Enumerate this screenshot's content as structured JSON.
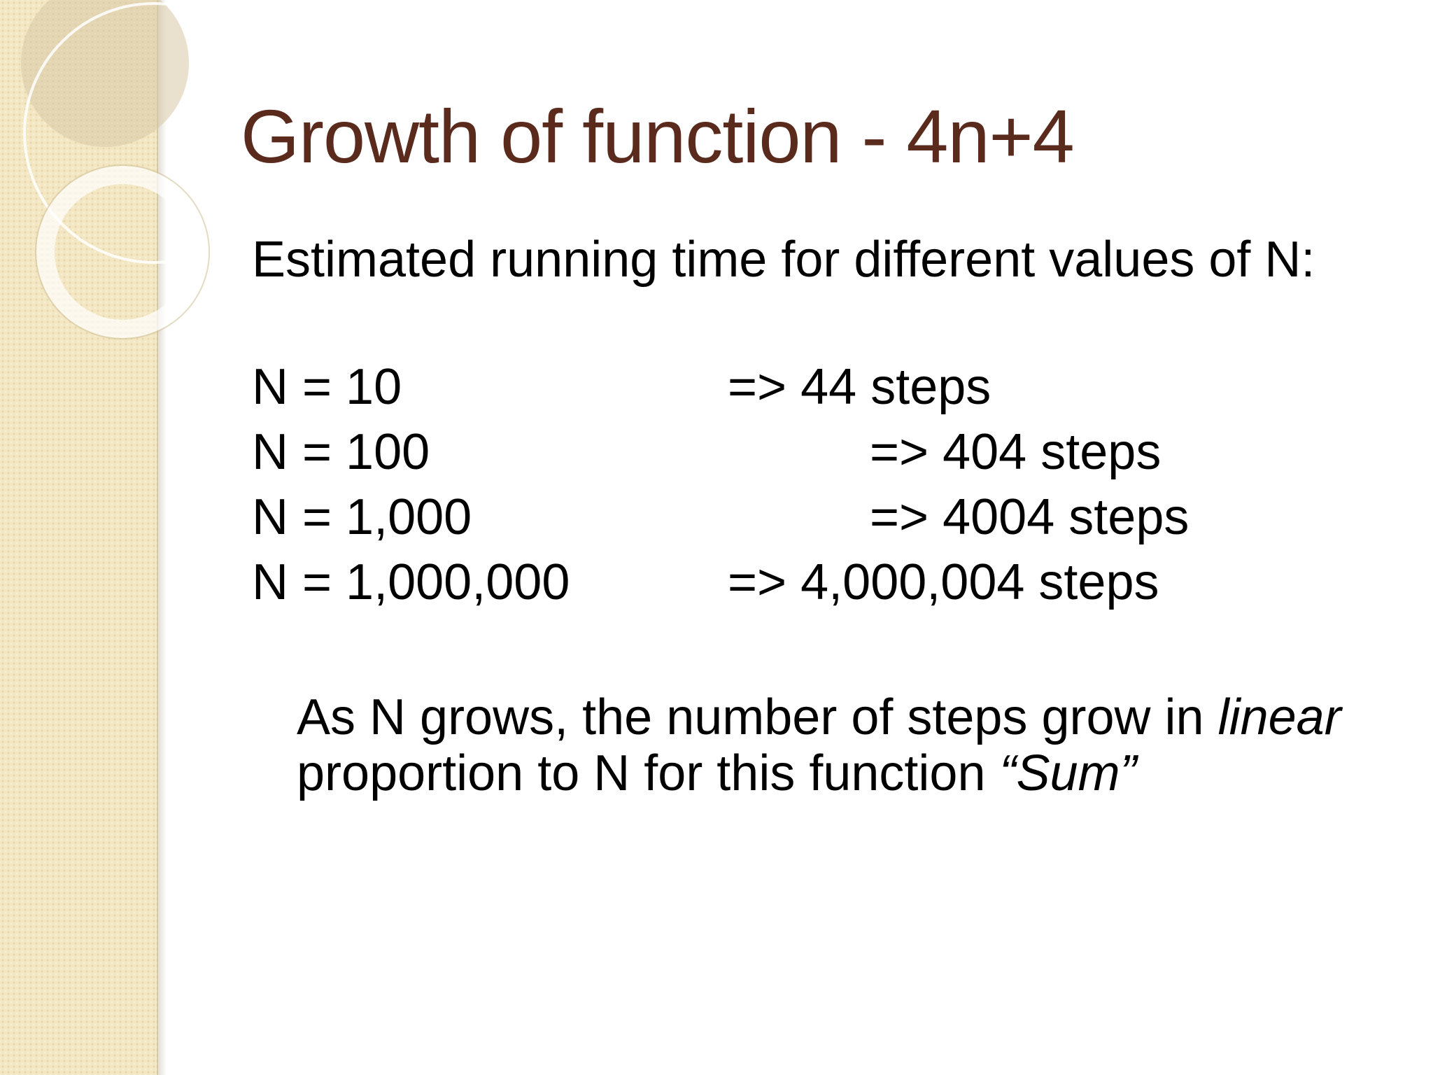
{
  "slide": {
    "title": "Growth of function - 4n+4",
    "intro": "Estimated running time for different values of N:",
    "rows": [
      {
        "n": "N = 10",
        "result": "=> 44 steps"
      },
      {
        "n": "N = 100",
        "result": "=> 404 steps"
      },
      {
        "n": "N = 1,000",
        "result": "=> 4004 steps"
      },
      {
        "n": "N = 1,000,000",
        "result": "=> 4,000,004 steps"
      }
    ],
    "summary": {
      "line1_text": "As N grows, the number of steps grow in ",
      "line1_italic": "linear",
      "line2_text": "proportion to N for this function ",
      "line2_italic": "“Sum”"
    }
  },
  "colors": {
    "title": "#5a2a1c",
    "side_band": "#f3e6c2",
    "body_text": "#000000"
  }
}
